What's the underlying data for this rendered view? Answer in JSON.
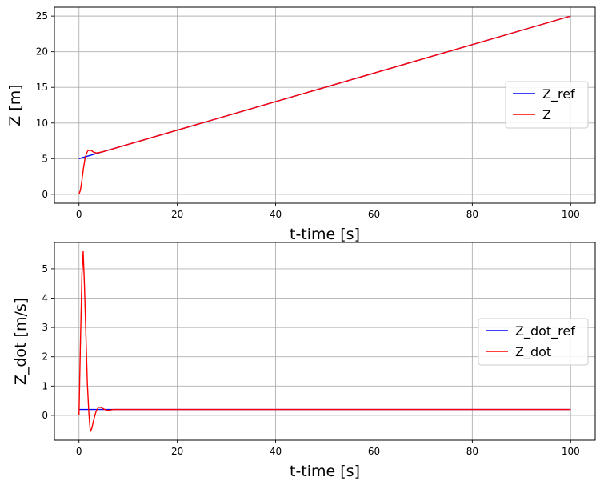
{
  "chart_data": [
    {
      "type": "line",
      "xlabel": "t-time [s]",
      "ylabel": "Z [m]",
      "xlim": [
        -5,
        105
      ],
      "ylim": [
        -1.25,
        26.25
      ],
      "xticks": [
        0,
        20,
        40,
        60,
        80,
        100
      ],
      "yticks": [
        0,
        5,
        10,
        15,
        20,
        25
      ],
      "grid": true,
      "legend_position": "center-right",
      "series": [
        {
          "name": "Z_ref",
          "color": "#0000ff",
          "x": [
            0,
            100
          ],
          "y": [
            5.0,
            25.0
          ]
        },
        {
          "name": "Z",
          "color": "#ff0000",
          "x": [
            0,
            0.3,
            0.6,
            0.9,
            1.2,
            1.5,
            1.8,
            2.2,
            2.6,
            3.0,
            3.5,
            4.0,
            5.0,
            6.0,
            8.0,
            100
          ],
          "y": [
            0.0,
            0.6,
            2.0,
            3.6,
            4.9,
            5.7,
            6.1,
            6.2,
            6.1,
            5.9,
            5.8,
            5.85,
            6.0,
            6.2,
            6.6,
            25.0
          ]
        }
      ]
    },
    {
      "type": "line",
      "xlabel": "t-time [s]",
      "ylabel": "Z_dot [m/s]",
      "xlim": [
        -5,
        105
      ],
      "ylim": [
        -0.85,
        5.9
      ],
      "xticks": [
        0,
        20,
        40,
        60,
        80,
        100
      ],
      "yticks": [
        0,
        1,
        2,
        3,
        4,
        5
      ],
      "grid": true,
      "legend_position": "center-right",
      "series": [
        {
          "name": "Z_dot_ref",
          "color": "#0000ff",
          "x": [
            0,
            100
          ],
          "y": [
            0.2,
            0.2
          ]
        },
        {
          "name": "Z_dot",
          "color": "#ff0000",
          "x": [
            0,
            0.3,
            0.6,
            0.85,
            1.1,
            1.4,
            1.7,
            2.0,
            2.3,
            2.6,
            3.0,
            3.5,
            4.0,
            4.5,
            5.0,
            5.5,
            6.0,
            7.0,
            100
          ],
          "y": [
            0.0,
            2.5,
            4.8,
            5.6,
            4.5,
            2.8,
            1.1,
            0.1,
            -0.55,
            -0.45,
            -0.15,
            0.15,
            0.28,
            0.27,
            0.22,
            0.18,
            0.17,
            0.2,
            0.2
          ]
        }
      ]
    }
  ]
}
